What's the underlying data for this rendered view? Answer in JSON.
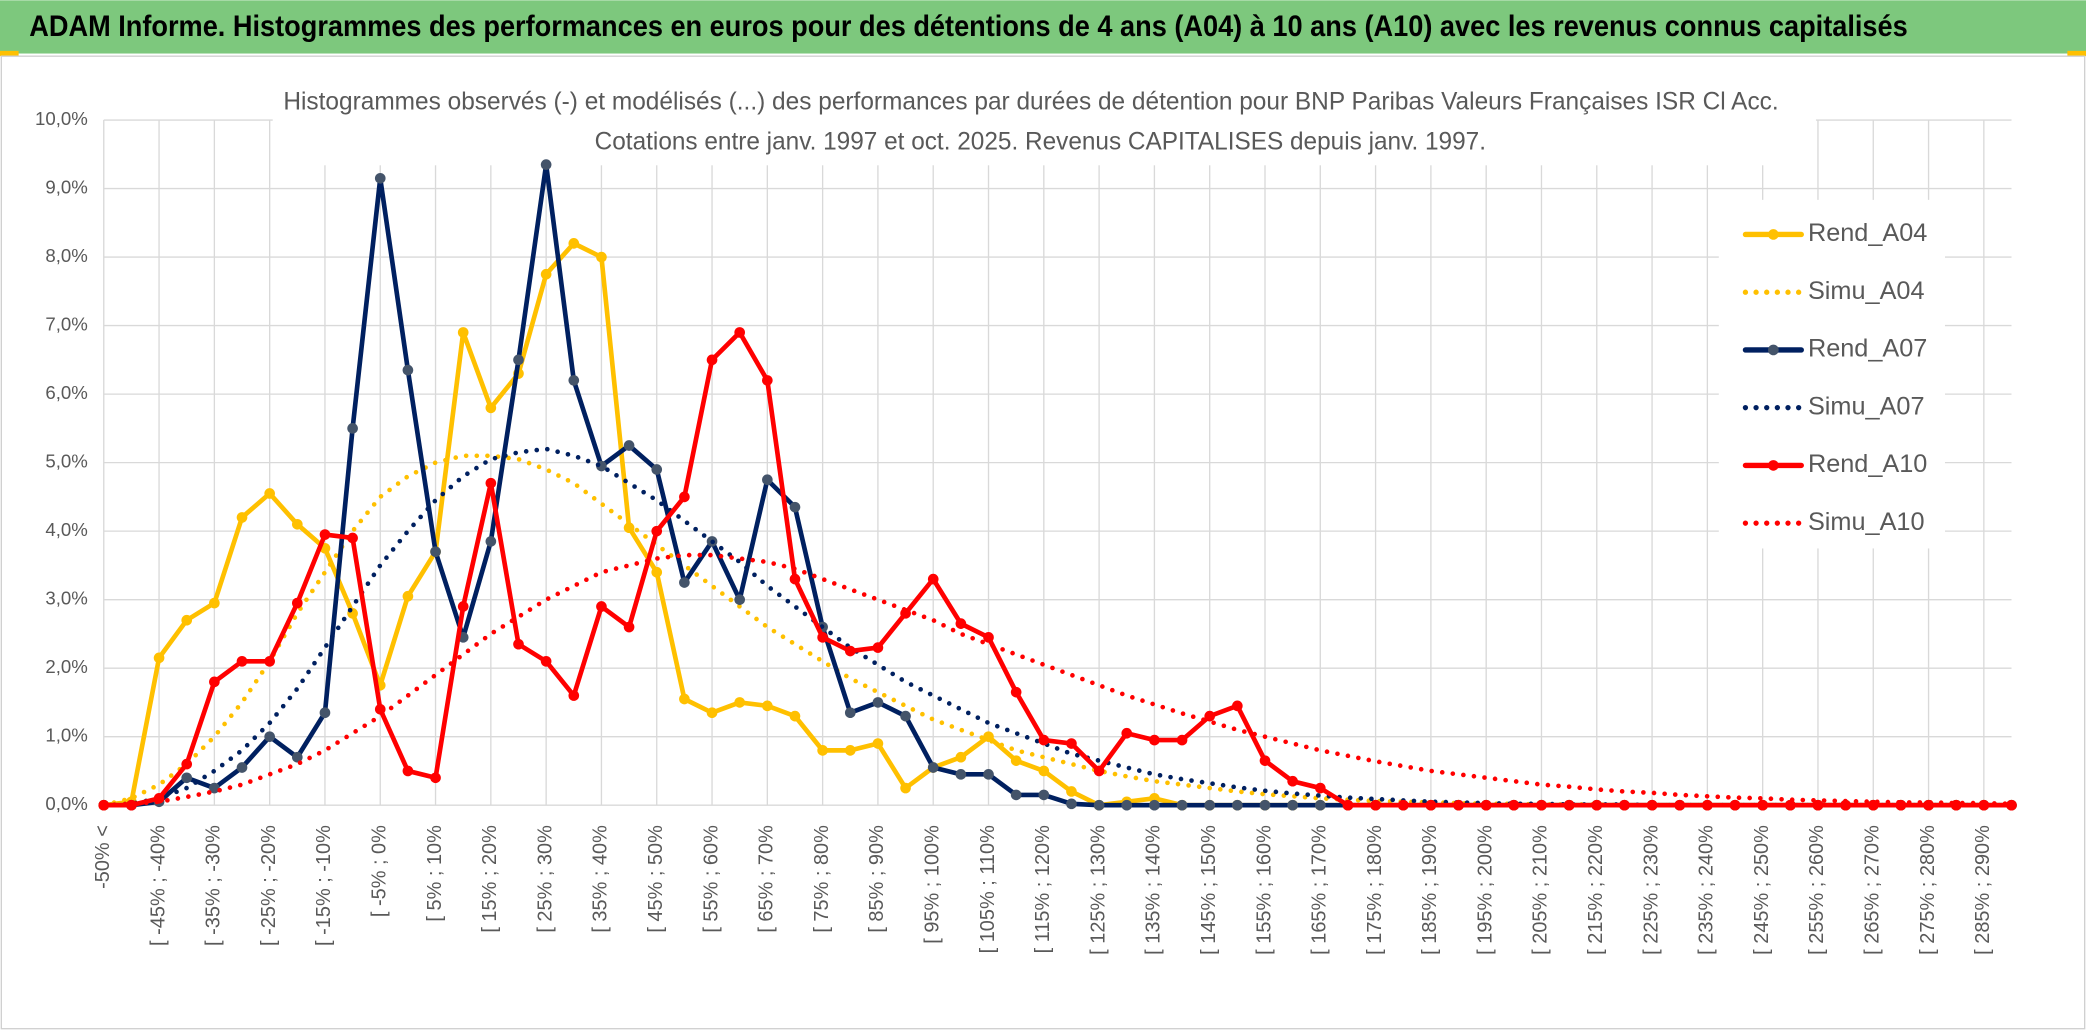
{
  "header": {
    "title": "ADAM Informe. Histogrammes des performances en euros pour des détentions de 4 ans (A04) à 10 ans (A10) avec les revenus connus capitalisés"
  },
  "chart_data": {
    "type": "line",
    "title": "Histogrammes observés (-) et modélisés (...) des performances par durées de détention pour BNP Paribas Valeurs Françaises ISR Cl Acc.",
    "subtitle": "Cotations entre janv. 1997 et oct. 2025. Revenus CAPITALISES depuis janv. 1997.",
    "categories": [
      "-50% <",
      null,
      "[ -45% ; -40%",
      null,
      "[ -35% ; -30%",
      null,
      "[ -25% ; -20%",
      null,
      "[ -15% ; -10%",
      null,
      "[ -5% ; 0%",
      null,
      "[ 5% ; 10%",
      null,
      "[ 15% ; 20%",
      null,
      "[ 25% ; 30%",
      null,
      "[ 35% ; 40%",
      null,
      "[ 45% ; 50%",
      null,
      "[ 55% ; 60%",
      null,
      "[ 65% ; 70%",
      null,
      "[ 75% ; 80%",
      null,
      "[ 85% ; 90%",
      null,
      "[ 95% ; 100%",
      null,
      "[ 105% ; 110%",
      null,
      "[ 115% ; 120%",
      null,
      "[ 125% ; 130%",
      null,
      "[ 135% ; 140%",
      null,
      "[ 145% ; 150%",
      null,
      "[ 155% ; 160%",
      null,
      "[ 165% ; 170%",
      null,
      "[ 175% ; 180%",
      null,
      "[ 185% ; 190%",
      null,
      "[ 195% ; 200%",
      null,
      "[ 205% ; 210%",
      null,
      "[ 215% ; 220%",
      null,
      "[ 225% ; 230%",
      null,
      "[ 235% ; 240%",
      null,
      "[ 245% ; 250%",
      null,
      "[ 255% ; 260%",
      null,
      "[ 265% ; 270%",
      null,
      "[ 275% ; 280%",
      null,
      "[ 285% ; 290%",
      null
    ],
    "ylim": [
      0,
      10
    ],
    "yticks": [
      {
        "value": 0,
        "label": "0,0%"
      },
      {
        "value": 1,
        "label": "1,0%"
      },
      {
        "value": 2,
        "label": "2,0%"
      },
      {
        "value": 3,
        "label": "3,0%"
      },
      {
        "value": 4,
        "label": "4,0%"
      },
      {
        "value": 5,
        "label": "5,0%"
      },
      {
        "value": 6,
        "label": "6,0%"
      },
      {
        "value": 7,
        "label": "7,0%"
      },
      {
        "value": 8,
        "label": "8,0%"
      },
      {
        "value": 9,
        "label": "9,0%"
      },
      {
        "value": 10,
        "label": "10,0%"
      }
    ],
    "grid": true,
    "legend": "right",
    "series": [
      {
        "name": "Rend_A04",
        "color": "#ffc000",
        "marker_color": "#ffc000",
        "dash": "solid",
        "markers": true,
        "values": [
          0,
          0.05,
          2.15,
          2.7,
          2.95,
          4.2,
          4.55,
          4.1,
          3.75,
          2.8,
          1.75,
          3.05,
          3.7,
          6.9,
          5.8,
          6.3,
          7.75,
          8.2,
          8.0,
          4.05,
          3.4,
          1.55,
          1.35,
          1.5,
          1.45,
          1.3,
          0.8,
          0.8,
          0.9,
          0.25,
          0.55,
          0.7,
          1.0,
          0.65,
          0.5,
          0.2,
          0,
          0.05,
          0.1,
          0,
          0,
          0,
          0,
          0,
          0,
          0,
          0,
          0,
          0,
          0,
          0,
          0,
          0,
          0,
          0,
          0,
          0,
          0,
          0,
          0,
          0,
          0,
          0,
          0,
          0,
          0,
          0,
          0,
          0,
          0
        ]
      },
      {
        "name": "Simu_A04",
        "color": "#ffc000",
        "dash": "dotted",
        "markers": false,
        "values": [
          0,
          0.1,
          0.3,
          0.6,
          1.0,
          1.5,
          2.1,
          2.8,
          3.4,
          4.0,
          4.5,
          4.8,
          5.0,
          5.1,
          5.1,
          5.05,
          4.9,
          4.7,
          4.4,
          4.1,
          3.8,
          3.5,
          3.2,
          2.9,
          2.6,
          2.35,
          2.1,
          1.85,
          1.65,
          1.45,
          1.25,
          1.1,
          0.95,
          0.8,
          0.7,
          0.6,
          0.5,
          0.42,
          0.35,
          0.3,
          0.25,
          0.2,
          0.16,
          0.13,
          0.1,
          0.08,
          0.06,
          0.05,
          0.04,
          0.03,
          0.02,
          0.02,
          0.01,
          0.01,
          0.01,
          0,
          0,
          0,
          0,
          0,
          0,
          0,
          0,
          0,
          0,
          0,
          0,
          0,
          0,
          0
        ]
      },
      {
        "name": "Rend_A07",
        "color": "#002060",
        "marker_color": "#44546a",
        "dash": "solid",
        "markers": true,
        "values": [
          0,
          0,
          0.05,
          0.4,
          0.25,
          0.55,
          1.0,
          0.7,
          1.35,
          5.5,
          9.15,
          6.35,
          3.7,
          2.45,
          3.85,
          6.5,
          9.35,
          6.2,
          4.95,
          5.25,
          4.9,
          3.25,
          3.85,
          3.0,
          4.75,
          4.35,
          2.6,
          1.35,
          1.5,
          1.3,
          0.55,
          0.45,
          0.45,
          0.15,
          0.15,
          0.02,
          0,
          0,
          0,
          0,
          0,
          0,
          0,
          0,
          0,
          0,
          0,
          0,
          0,
          0,
          0,
          0,
          0,
          0,
          0,
          0,
          0,
          0,
          0,
          0,
          0,
          0,
          0,
          0,
          0,
          0,
          0,
          0,
          0,
          0
        ]
      },
      {
        "name": "Simu_A07",
        "color": "#002060",
        "dash": "dotted",
        "markers": false,
        "values": [
          0,
          0.02,
          0.1,
          0.25,
          0.5,
          0.8,
          1.2,
          1.7,
          2.3,
          2.9,
          3.5,
          4.0,
          4.45,
          4.8,
          5.05,
          5.15,
          5.2,
          5.1,
          4.95,
          4.7,
          4.45,
          4.15,
          3.85,
          3.55,
          3.2,
          2.9,
          2.6,
          2.3,
          2.05,
          1.8,
          1.6,
          1.4,
          1.2,
          1.05,
          0.9,
          0.75,
          0.65,
          0.55,
          0.45,
          0.38,
          0.32,
          0.26,
          0.21,
          0.17,
          0.14,
          0.11,
          0.09,
          0.07,
          0.05,
          0.04,
          0.03,
          0.02,
          0.02,
          0.01,
          0.01,
          0.01,
          0,
          0,
          0,
          0,
          0,
          0,
          0,
          0,
          0,
          0,
          0,
          0,
          0,
          0
        ]
      },
      {
        "name": "Rend_A10",
        "color": "#ff0000",
        "marker_color": "#ff0000",
        "dash": "solid",
        "markers": true,
        "values": [
          0,
          0,
          0.1,
          0.6,
          1.8,
          2.1,
          2.1,
          2.95,
          3.95,
          3.9,
          1.4,
          0.5,
          0.4,
          2.9,
          4.7,
          2.35,
          2.1,
          1.6,
          2.9,
          2.6,
          4.0,
          4.5,
          6.5,
          6.9,
          6.2,
          3.3,
          2.45,
          2.25,
          2.3,
          2.8,
          3.3,
          2.65,
          2.45,
          1.65,
          0.95,
          0.9,
          0.5,
          1.05,
          0.95,
          0.95,
          1.3,
          1.45,
          0.65,
          0.35,
          0.25,
          0,
          0,
          0,
          0,
          0,
          0,
          0,
          0,
          0,
          0,
          0,
          0,
          0,
          0,
          0,
          0,
          0,
          0,
          0,
          0,
          0,
          0,
          0,
          0,
          0
        ]
      },
      {
        "name": "Simu_A10",
        "color": "#ff0000",
        "dash": "dotted",
        "markers": false,
        "values": [
          0,
          0.02,
          0.05,
          0.12,
          0.2,
          0.3,
          0.45,
          0.6,
          0.8,
          1.05,
          1.3,
          1.6,
          1.9,
          2.2,
          2.5,
          2.75,
          3.0,
          3.2,
          3.4,
          3.5,
          3.6,
          3.65,
          3.65,
          3.6,
          3.55,
          3.45,
          3.3,
          3.15,
          3.0,
          2.85,
          2.7,
          2.5,
          2.35,
          2.2,
          2.05,
          1.9,
          1.75,
          1.6,
          1.47,
          1.34,
          1.22,
          1.1,
          1.0,
          0.9,
          0.8,
          0.72,
          0.64,
          0.57,
          0.5,
          0.45,
          0.4,
          0.35,
          0.3,
          0.27,
          0.23,
          0.2,
          0.18,
          0.15,
          0.13,
          0.11,
          0.1,
          0.08,
          0.07,
          0.06,
          0.05,
          0.04,
          0.04,
          0.03,
          0.03,
          0.02
        ]
      }
    ]
  }
}
